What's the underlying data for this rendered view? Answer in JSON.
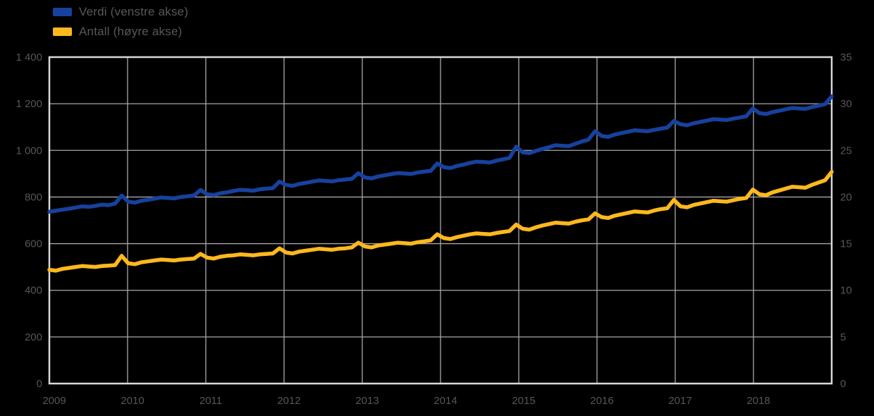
{
  "colors": {
    "background": "#000000",
    "series_value": "#17419e",
    "series_count": "#fdb81e",
    "gridline": "#a8a8a8",
    "plot_border": "#d9d9d9",
    "axis_text": "#565656"
  },
  "legend": {
    "items": [
      {
        "label": "Verdi (venstre akse)",
        "color": "#17419e"
      },
      {
        "label": "Antall (høyre akse)",
        "color": "#fdb81e"
      }
    ]
  },
  "chart_data": {
    "type": "line",
    "title": "",
    "xlabel": "",
    "ylabel_left": "",
    "ylabel_right": "",
    "grid": true,
    "legend_position": "top-left",
    "x_unit": "month",
    "x_start": "2009-01",
    "x_end": "2018-12",
    "x_ticks": [
      "2009",
      "2010",
      "2011",
      "2012",
      "2013",
      "2014",
      "2015",
      "2016",
      "2017",
      "2018"
    ],
    "x_gridline_count": 11,
    "left_axis": {
      "min": 0,
      "max": 1400,
      "tick_values": [
        1400,
        1200,
        1000,
        800,
        600,
        400,
        200,
        0
      ],
      "tick_labels": [
        "1 400",
        "1 200",
        "1 000",
        "800",
        "600",
        "400",
        "200",
        "0"
      ]
    },
    "right_axis": {
      "min": 0,
      "max": 35,
      "tick_values": [
        35,
        30,
        25,
        20,
        15,
        10,
        5,
        0
      ],
      "tick_labels": [
        "35",
        "30",
        "25",
        "20",
        "15",
        "10",
        "5",
        "0"
      ]
    },
    "series": [
      {
        "name": "Verdi (venstre akse)",
        "axis": "left",
        "color": "#17419e",
        "values": [
          737,
          741,
          746,
          750,
          755,
          760,
          758,
          762,
          767,
          765,
          772,
          806,
          780,
          776,
          784,
          788,
          793,
          798,
          796,
          794,
          800,
          803,
          806,
          830,
          812,
          808,
          816,
          820,
          826,
          831,
          829,
          827,
          833,
          836,
          838,
          866,
          852,
          848,
          856,
          861,
          866,
          871,
          869,
          867,
          872,
          875,
          878,
          902,
          884,
          880,
          888,
          893,
          898,
          903,
          901,
          899,
          905,
          909,
          912,
          944,
          928,
          924,
          933,
          939,
          946,
          952,
          950,
          948,
          956,
          962,
          968,
          1016,
          992,
          988,
          998,
          1006,
          1014,
          1022,
          1020,
          1018,
          1028,
          1038,
          1046,
          1082,
          1062,
          1058,
          1068,
          1074,
          1080,
          1086,
          1084,
          1082,
          1088,
          1093,
          1098,
          1126,
          1112,
          1108,
          1116,
          1122,
          1128,
          1134,
          1132,
          1130,
          1136,
          1141,
          1146,
          1180,
          1160,
          1156,
          1164,
          1170,
          1176,
          1182,
          1180,
          1178,
          1186,
          1192,
          1198,
          1232
        ]
      },
      {
        "name": "Antall (høyre akse)",
        "axis": "right",
        "color": "#fdb81e",
        "values": [
          12.2,
          12.1,
          12.3,
          12.4,
          12.5,
          12.6,
          12.55,
          12.5,
          12.6,
          12.65,
          12.7,
          13.7,
          12.9,
          12.8,
          13.0,
          13.1,
          13.2,
          13.3,
          13.25,
          13.2,
          13.3,
          13.35,
          13.4,
          13.9,
          13.5,
          13.4,
          13.6,
          13.7,
          13.75,
          13.85,
          13.8,
          13.75,
          13.85,
          13.9,
          13.95,
          14.5,
          14.05,
          13.95,
          14.15,
          14.25,
          14.35,
          14.45,
          14.4,
          14.35,
          14.45,
          14.5,
          14.6,
          15.1,
          14.7,
          14.6,
          14.8,
          14.9,
          15.0,
          15.1,
          15.05,
          15.0,
          15.15,
          15.25,
          15.35,
          16.0,
          15.6,
          15.5,
          15.7,
          15.85,
          16.0,
          16.1,
          16.05,
          16.0,
          16.15,
          16.25,
          16.35,
          17.05,
          16.6,
          16.5,
          16.75,
          16.95,
          17.1,
          17.25,
          17.2,
          17.15,
          17.35,
          17.5,
          17.6,
          18.25,
          17.85,
          17.75,
          18.0,
          18.15,
          18.3,
          18.45,
          18.4,
          18.35,
          18.55,
          18.7,
          18.8,
          19.7,
          19.0,
          18.9,
          19.15,
          19.3,
          19.45,
          19.6,
          19.55,
          19.5,
          19.65,
          19.8,
          19.9,
          20.8,
          20.3,
          20.2,
          20.5,
          20.7,
          20.9,
          21.1,
          21.05,
          21.0,
          21.3,
          21.55,
          21.8,
          22.7
        ]
      }
    ]
  }
}
